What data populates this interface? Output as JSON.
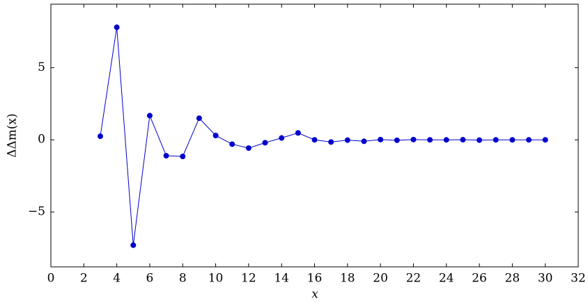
{
  "chart_data": {
    "type": "line",
    "x_label": "x",
    "y_label": "ΔΔm(x)",
    "x": [
      3,
      4,
      5,
      6,
      7,
      8,
      9,
      10,
      11,
      12,
      13,
      14,
      15,
      16,
      17,
      18,
      19,
      20,
      21,
      22,
      23,
      24,
      25,
      26,
      27,
      28,
      29,
      30
    ],
    "series": [
      {
        "color": "#0000cc",
        "values": [
          0.25,
          7.8,
          -7.3,
          1.68,
          -1.1,
          -1.15,
          1.5,
          0.3,
          -0.3,
          -0.57,
          -0.2,
          0.13,
          0.48,
          0,
          -0.15,
          -0.02,
          -0.1,
          0.02,
          -0.03,
          0.02,
          0,
          0,
          0.01,
          -0.02,
          0,
          0,
          0,
          0
        ]
      }
    ],
    "xlim": [
      0,
      32
    ],
    "xticks": [
      0,
      2,
      4,
      6,
      8,
      10,
      12,
      14,
      16,
      18,
      20,
      22,
      24,
      26,
      28,
      30,
      32
    ],
    "ylim": [
      -8.8,
      9.4
    ],
    "yticks": [
      {
        "value": -5,
        "label": "−5"
      },
      0,
      5
    ],
    "grid": false
  }
}
